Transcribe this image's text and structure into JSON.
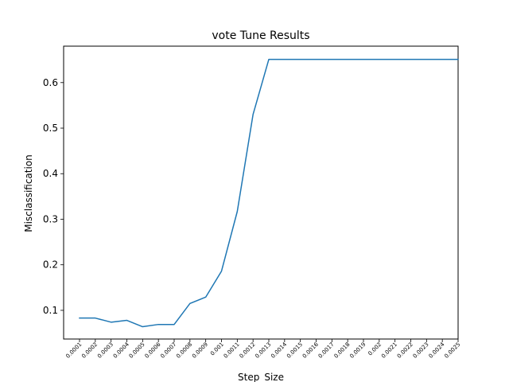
{
  "chart_data": {
    "type": "line",
    "title": "vote Tune Results",
    "xlabel": "Step_Size",
    "ylabel": "Misclassification",
    "categories": [
      "0.0001",
      "0.0002",
      "0.0003",
      "0.0004",
      "0.0005",
      "0.0006",
      "0.0007",
      "0.0008",
      "0.0009",
      "0.001",
      "0.0011",
      "0.0012",
      "0.0013",
      "0.0014",
      "0.0015",
      "0.0016",
      "0.0017",
      "0.0018",
      "0.0019",
      "0.002",
      "0.0021",
      "0.0022",
      "0.0023",
      "0.0024",
      "0.0025"
    ],
    "series": [
      {
        "values": [
          0.083,
          0.083,
          0.074,
          0.078,
          0.064,
          0.069,
          0.069,
          0.115,
          0.129,
          0.186,
          0.317,
          0.53,
          0.651,
          0.651,
          0.651,
          0.651,
          0.651,
          0.651,
          0.651,
          0.651,
          0.651,
          0.651,
          0.651,
          0.651,
          0.651
        ],
        "color": "#1f77b4"
      }
    ],
    "ylim": [
      0.037,
      0.68
    ],
    "yticks": [
      0.1,
      0.2,
      0.3,
      0.4,
      0.5,
      0.6
    ],
    "ytick_labels": [
      "0.1",
      "0.2",
      "0.3",
      "0.4",
      "0.5",
      "0.6"
    ],
    "grid": false,
    "legend": "none"
  }
}
